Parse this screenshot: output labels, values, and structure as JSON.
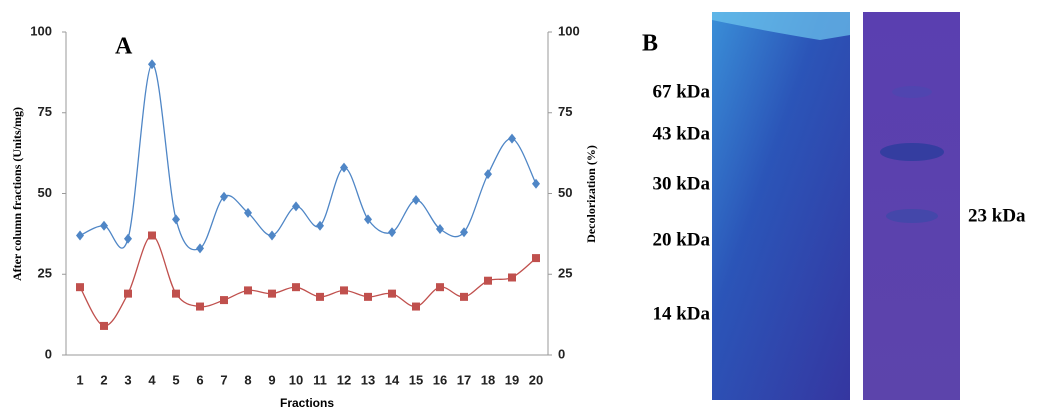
{
  "chart_data": {
    "type": "line",
    "panel_label": "A",
    "x_label": "Fractions",
    "y_label": "After column fractions (Units/mg)",
    "y2_label": "Decolorization (%)",
    "categories": [
      1,
      2,
      3,
      4,
      5,
      6,
      7,
      8,
      9,
      10,
      11,
      12,
      13,
      14,
      15,
      16,
      17,
      18,
      19,
      20
    ],
    "ylim": [
      0,
      100
    ],
    "yticks": [
      0,
      25,
      50,
      75,
      100
    ],
    "y2lim": [
      0,
      100
    ],
    "y2ticks": [
      0,
      25,
      50,
      75,
      100
    ],
    "series": [
      {
        "color": "#4f86c6",
        "marker": "diamond",
        "values": [
          37,
          40,
          36,
          90,
          42,
          33,
          49,
          44,
          37,
          46,
          40,
          58,
          42,
          38,
          48,
          39,
          38,
          56,
          67,
          53
        ]
      },
      {
        "color": "#c0504d",
        "marker": "square",
        "axis": "y2",
        "values": [
          21,
          9,
          19,
          37,
          19,
          15,
          17,
          20,
          19,
          21,
          18,
          20,
          18,
          19,
          15,
          21,
          18,
          23,
          24,
          30
        ]
      }
    ]
  },
  "panel_b": {
    "label": "B",
    "markers": [
      "67 kDa",
      "43 kDa",
      "30 kDa",
      "20 kDa",
      "14 kDa"
    ],
    "band_label": "23 kDa"
  }
}
